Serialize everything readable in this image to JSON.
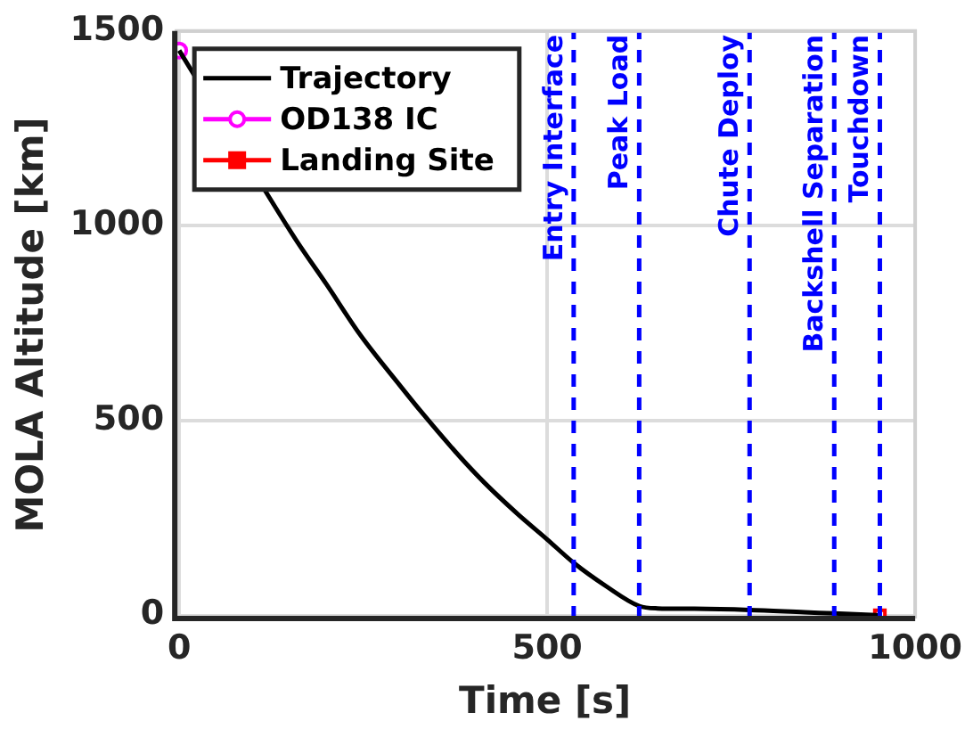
{
  "chart_data": {
    "type": "line",
    "xlabel": "Time [s]",
    "ylabel": "MOLA Altitude [km]",
    "xlim": [
      -6,
      1000
    ],
    "ylim": [
      -8,
      1500
    ],
    "xticks": [
      0,
      500,
      1000
    ],
    "yticks": [
      0,
      500,
      1000,
      1500
    ],
    "grid": true,
    "legend": "top left",
    "series": [
      {
        "name": "Trajectory",
        "color": "#000000",
        "marker": "none",
        "x": [
          0,
          125,
          160,
          200,
          246,
          300,
          330,
          380,
          415,
          460,
          500,
          536,
          580,
          625,
          650,
          700,
          775,
          850,
          890,
          952
        ],
        "values": [
          1450,
          1065,
          960,
          850,
          720,
          590,
          520,
          410,
          340,
          260,
          195,
          135,
          75,
          24,
          18,
          17,
          14,
          8,
          5,
          0
        ]
      },
      {
        "name": "OD138 IC",
        "color": "#ff00ff",
        "marker": "circle",
        "x": [
          0
        ],
        "values": [
          1450
        ]
      },
      {
        "name": "Landing Site",
        "color": "#ff0000",
        "marker": "square",
        "x": [
          952
        ],
        "values": [
          0
        ]
      }
    ],
    "ref_lines": [
      {
        "axis": "x",
        "value": 536,
        "label": "Entry Interface",
        "color": "#0000ff",
        "line_style": "dashed"
      },
      {
        "axis": "x",
        "value": 625,
        "label": "Peak Load",
        "color": "#0000ff",
        "line_style": "dashed"
      },
      {
        "axis": "x",
        "value": 775,
        "label": "Chute Deploy",
        "color": "#0000ff",
        "line_style": "dashed"
      },
      {
        "axis": "x",
        "value": 890,
        "label": "Backshell Separation",
        "color": "#0000ff",
        "line_style": "dashed"
      },
      {
        "axis": "x",
        "value": 952,
        "label": "Touchdown",
        "color": "#0000ff",
        "line_style": "dashed"
      }
    ]
  }
}
